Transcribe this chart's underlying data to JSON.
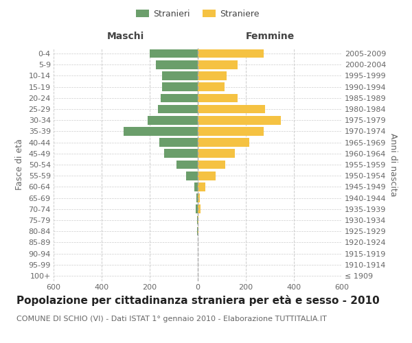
{
  "age_groups": [
    "100+",
    "95-99",
    "90-94",
    "85-89",
    "80-84",
    "75-79",
    "70-74",
    "65-69",
    "60-64",
    "55-59",
    "50-54",
    "45-49",
    "40-44",
    "35-39",
    "30-34",
    "25-29",
    "20-24",
    "15-19",
    "10-14",
    "5-9",
    "0-4"
  ],
  "birth_years": [
    "≤ 1909",
    "1910-1914",
    "1915-1919",
    "1920-1924",
    "1925-1929",
    "1930-1934",
    "1935-1939",
    "1940-1944",
    "1945-1949",
    "1950-1954",
    "1955-1959",
    "1960-1964",
    "1965-1969",
    "1970-1974",
    "1975-1979",
    "1980-1984",
    "1985-1989",
    "1990-1994",
    "1995-1999",
    "2000-2004",
    "2005-2009"
  ],
  "males": [
    0,
    0,
    0,
    0,
    2,
    3,
    8,
    6,
    15,
    50,
    90,
    140,
    160,
    310,
    210,
    165,
    155,
    150,
    150,
    175,
    200
  ],
  "females": [
    0,
    0,
    0,
    0,
    2,
    3,
    12,
    8,
    30,
    75,
    115,
    155,
    215,
    275,
    345,
    280,
    165,
    110,
    120,
    165,
    275
  ],
  "male_color": "#6b9e6b",
  "female_color": "#f5c242",
  "title": "Popolazione per cittadinanza straniera per età e sesso - 2010",
  "subtitle": "COMUNE DI SCHIO (VI) - Dati ISTAT 1° gennaio 2010 - Elaborazione TUTTITALIA.IT",
  "xlabel_left": "Maschi",
  "xlabel_right": "Femmine",
  "ylabel_left": "Fasce di età",
  "ylabel_right": "Anni di nascita",
  "legend_male": "Stranieri",
  "legend_female": "Straniere",
  "xlim": 600,
  "bg_color": "#ffffff",
  "grid_color": "#cccccc",
  "title_fontsize": 11,
  "subtitle_fontsize": 8,
  "label_fontsize": 9,
  "tick_fontsize": 8
}
